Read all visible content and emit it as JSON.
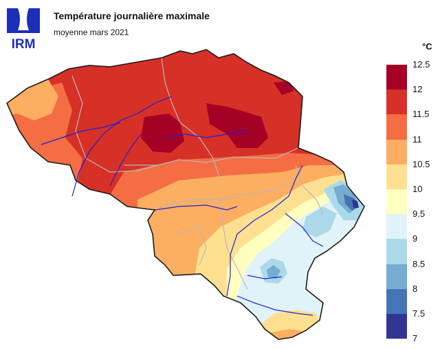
{
  "header": {
    "logo_text": "IRM",
    "title": "Température journalière maximale",
    "subtitle": "moyenne mars 2021"
  },
  "legend": {
    "unit": "°C",
    "ticks": [
      "12.5",
      "12",
      "11.5",
      "11",
      "10.5",
      "10",
      "9.5",
      "9",
      "8.5",
      "8",
      "7.5",
      "7"
    ],
    "colors": [
      "#a50026",
      "#d73027",
      "#f46d43",
      "#fdae61",
      "#fee090",
      "#ffffbf",
      "#e0f3f8",
      "#abd9e9",
      "#74add1",
      "#4575b4",
      "#313695"
    ]
  },
  "map_colors": {
    "border": "#1a1a1a",
    "rivers": "#1f1fd6",
    "provinces": "#b8b8b8"
  }
}
